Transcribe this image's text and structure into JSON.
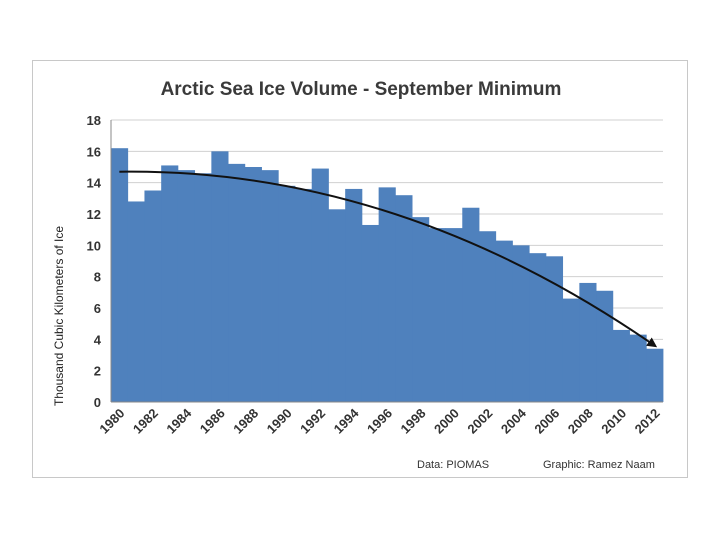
{
  "chart_data": {
    "type": "bar",
    "title": "Arctic Sea Ice Volume - September Minimum",
    "ylabel": "Thousand Cubic Kilometers of Ice",
    "xlabel": "",
    "ylim": [
      0,
      18
    ],
    "yticks": [
      "0",
      "2",
      "4",
      "6",
      "8",
      "10",
      "12",
      "14",
      "16",
      "18"
    ],
    "x_tick_labels": [
      "1980",
      "1982",
      "1984",
      "1986",
      "1988",
      "1990",
      "1992",
      "1994",
      "1996",
      "1998",
      "2000",
      "2002",
      "2004",
      "2006",
      "2008",
      "2010",
      "2012"
    ],
    "categories": [
      "1980",
      "1981",
      "1982",
      "1983",
      "1984",
      "1985",
      "1986",
      "1987",
      "1988",
      "1989",
      "1990",
      "1991",
      "1992",
      "1993",
      "1994",
      "1995",
      "1996",
      "1997",
      "1998",
      "1999",
      "2000",
      "2001",
      "2002",
      "2003",
      "2004",
      "2005",
      "2006",
      "2007",
      "2008",
      "2009",
      "2010",
      "2011",
      "2012"
    ],
    "values": [
      16.2,
      12.8,
      13.5,
      15.1,
      14.8,
      14.6,
      16.0,
      15.2,
      15.0,
      14.8,
      13.8,
      13.6,
      14.9,
      12.3,
      13.6,
      11.3,
      13.7,
      13.2,
      11.8,
      11.1,
      11.1,
      12.4,
      10.9,
      10.3,
      10.0,
      9.5,
      9.3,
      6.6,
      7.6,
      7.1,
      4.6,
      4.3,
      3.4
    ],
    "bar_color": "#4f81bd",
    "grid": true,
    "annotation": "trend arrow",
    "trend_curve": {
      "x_start": "1980",
      "y_start": 14.7,
      "x_end": "2012",
      "y_end": 3.6
    },
    "credits": {
      "data": "Data: PIOMAS",
      "graphic": "Graphic: Ramez Naam"
    }
  }
}
